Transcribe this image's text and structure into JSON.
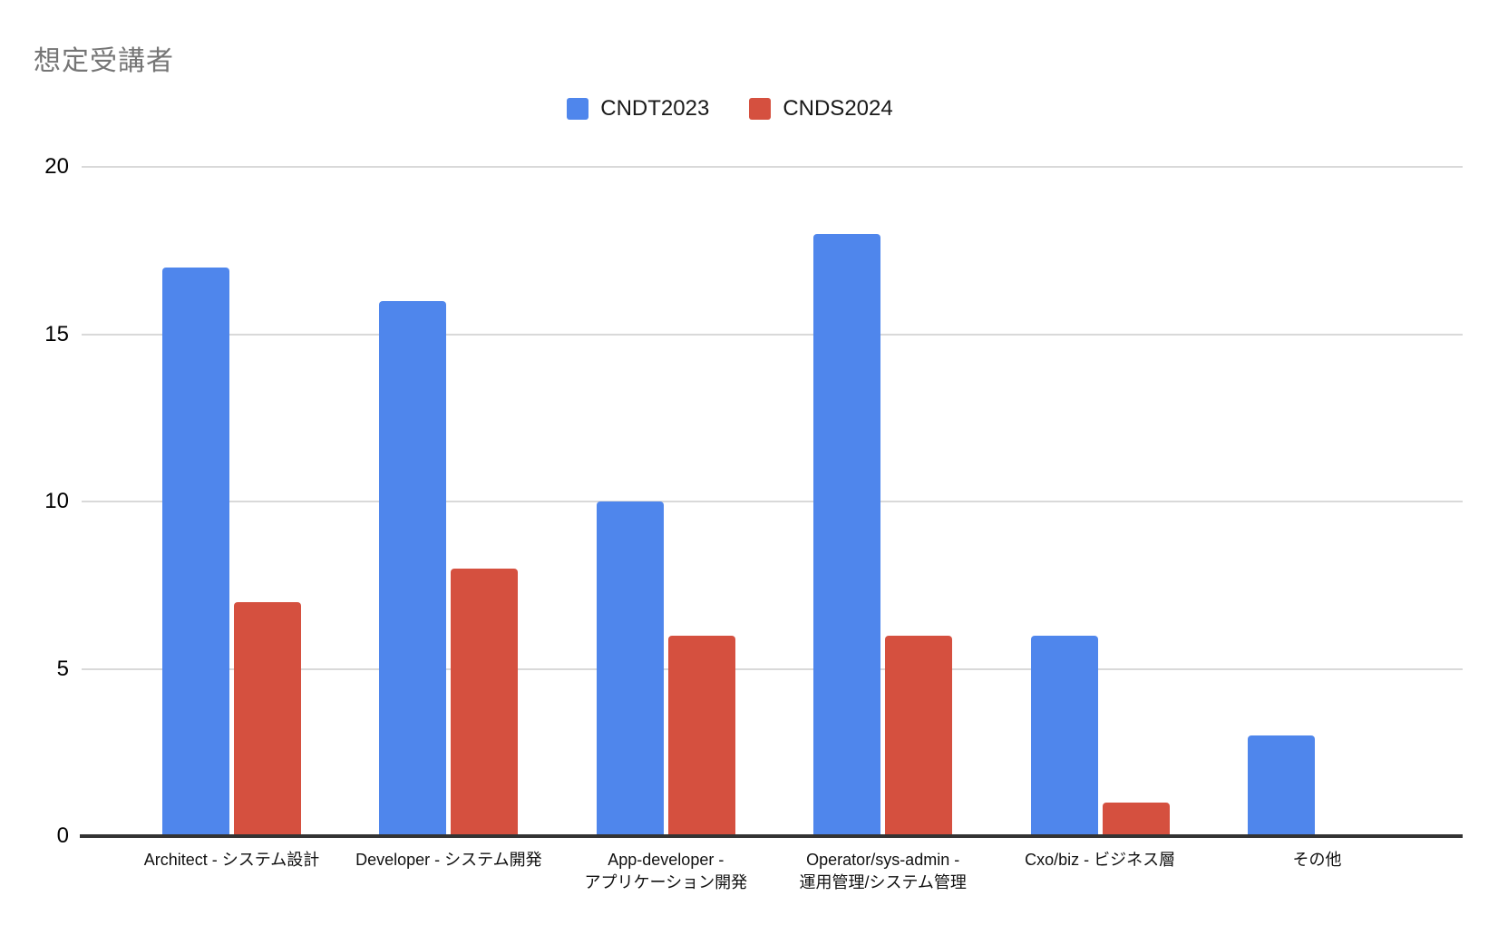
{
  "title": "想定受講者",
  "colors": {
    "series_blue": "#4F86EC",
    "series_red": "#D5503F",
    "title_gray": "#757575",
    "axis_line": "#333333",
    "gridline": "#D9D9D9",
    "background": "#FFFFFF"
  },
  "chart_data": {
    "type": "bar",
    "title": "想定受講者",
    "categories": [
      "Architect - システム設計",
      "Developer - システム開発",
      "App-developer -\nアプリケーション開発",
      "Operator/sys-admin -\n運用管理/システム管理",
      "Cxo/biz - ビジネス層",
      "その他"
    ],
    "series": [
      {
        "name": "CNDT2023",
        "color": "#4F86EC",
        "values": [
          17,
          16,
          10,
          18,
          6,
          3
        ]
      },
      {
        "name": "CNDS2024",
        "color": "#D5503F",
        "values": [
          7,
          8,
          6,
          6,
          1,
          0
        ]
      }
    ],
    "xlabel": "",
    "ylabel": "",
    "ylim": [
      0,
      20
    ],
    "yticks": [
      0,
      5,
      10,
      15,
      20
    ],
    "grid": true,
    "legend_position": "top"
  }
}
